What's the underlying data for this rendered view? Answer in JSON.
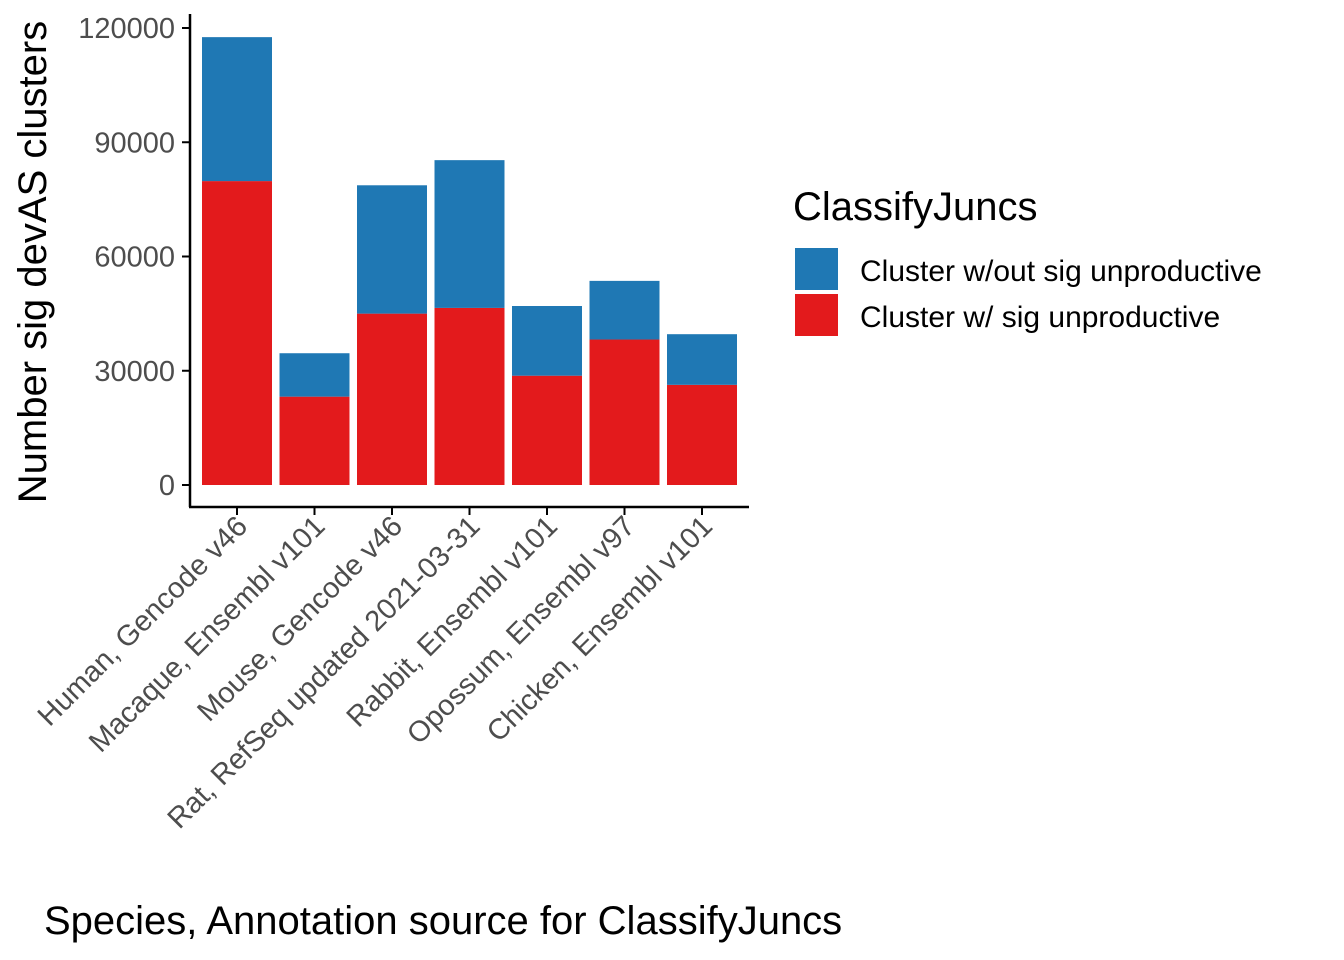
{
  "chart_data": {
    "type": "bar",
    "stacked": true,
    "categories": [
      "Human, Gencode v46",
      "Macaque, Ensembl v101",
      "Mouse, Gencode v46",
      "Rat, RefSeq updated 2021-03-31",
      "Rabbit, Ensembl v101",
      "Opossum, Ensembl v97",
      "Chicken, Ensembl v101"
    ],
    "series": [
      {
        "name": "Cluster w/ sig unproductive",
        "color": "#e31a1c",
        "values": [
          79800,
          23200,
          45000,
          46500,
          28700,
          38200,
          26300
        ]
      },
      {
        "name": "Cluster w/out sig unproductive",
        "color": "#1f78b4",
        "values": [
          37800,
          11400,
          33700,
          38800,
          18300,
          15400,
          13300
        ]
      }
    ],
    "xlabel": "Species, Annotation source for ClassifyJuncs",
    "ylabel": "Number sig devAS clusters",
    "ylim": [
      0,
      120000
    ],
    "yticks": [
      0,
      30000,
      60000,
      90000,
      120000
    ],
    "grid": false,
    "legend": {
      "title": "ClassifyJuncs",
      "placement": "right",
      "items": [
        "Cluster w/out sig unproductive",
        "Cluster w/ sig unproductive"
      ]
    }
  }
}
